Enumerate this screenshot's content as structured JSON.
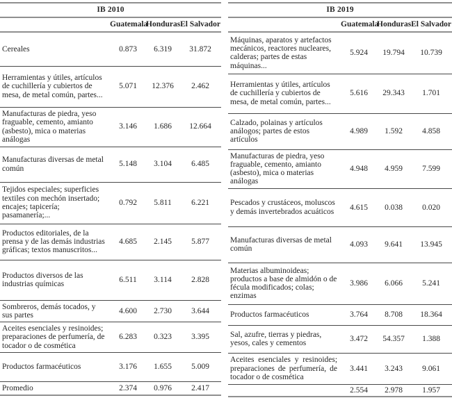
{
  "page": {
    "background": "#ffffff",
    "text_color": "#262626",
    "rule_color_heavy": "#8f8f8f",
    "rule_color_light": "#474747"
  },
  "tables": {
    "ib2010": {
      "title": "IB 2010",
      "columns": [
        "Guatemala",
        "Honduras",
        "El Salvador"
      ],
      "rows": [
        {
          "label": "Cereales",
          "values": [
            "0.873",
            "6.319",
            "31.872"
          ]
        },
        {
          "label": "Herramientas y útiles, artículos de cuchillería y cubiertos de mesa, de metal común, partes...",
          "values": [
            "5.071",
            "12.376",
            "2.462"
          ]
        },
        {
          "label": "Manufacturas de piedra, yeso fraguable, cemento, amianto (asbesto), mica o materias análogas",
          "values": [
            "3.146",
            "1.686",
            "12.664"
          ]
        },
        {
          "label": "Manufacturas diversas de metal común",
          "values": [
            "5.148",
            "3.104",
            "6.485"
          ]
        },
        {
          "label": "Tejidos especiales; superficies textiles con mechón insertado; encajes; tapicería; pasamanería;...",
          "values": [
            "0.792",
            "5.811",
            "6.221"
          ]
        },
        {
          "label": "Productos editoriales, de la prensa y de las demás industrias gráficas; textos manuscritos...",
          "values": [
            "4.685",
            "2.145",
            "5.877"
          ]
        },
        {
          "label": "Productos diversos de las industrias químicas",
          "values": [
            "6.511",
            "3.114",
            "2.828"
          ]
        },
        {
          "label": "Sombreros, demás tocados, y sus partes",
          "values": [
            "4.600",
            "2.730",
            "3.644"
          ]
        },
        {
          "label": "Aceites esenciales y resinoides; preparaciones de perfumería, de tocador o de cosmética",
          "values": [
            "6.283",
            "0.323",
            "3.395"
          ]
        },
        {
          "label": "Productos farmacéuticos",
          "values": [
            "3.176",
            "1.655",
            "5.009"
          ]
        },
        {
          "label": "Promedio",
          "values": [
            "2.374",
            "0.976",
            "2.417"
          ]
        }
      ]
    },
    "ib2019": {
      "title": "IB 2019",
      "columns": [
        "Guatemala",
        "Honduras",
        "El Salvador"
      ],
      "rows": [
        {
          "label": "Máquinas, aparatos y artefactos mecánicos, reactores nucleares, calderas; partes de estas máquinas...",
          "values": [
            "5.924",
            "19.794",
            "10.739"
          ]
        },
        {
          "label": "Herramientas y útiles, artículos de cuchillería y cubiertos de mesa, de metal común, partes...",
          "values": [
            "5.616",
            "29.343",
            "1.701"
          ]
        },
        {
          "label": "Calzado, polainas y artículos análogos; partes de estos artículos",
          "values": [
            "4.989",
            "1.592",
            "4.858"
          ]
        },
        {
          "label": "Manufacturas de piedra, yeso fraguable, cemento, amianto (asbesto), mica o materias análogas",
          "values": [
            "4.948",
            "4.959",
            "7.599"
          ]
        },
        {
          "label": "Pescados y crustáceos, moluscos y demás invertebrados acuáticos",
          "values": [
            "4.615",
            "0.038",
            "0.020"
          ]
        },
        {
          "label": "Manufacturas diversas de metal común",
          "values": [
            "4.093",
            "9.641",
            "13.945"
          ]
        },
        {
          "label": "Materias albuminoideas; productos a base de almidón o de fécula modificados; colas; enzimas",
          "values": [
            "3.986",
            "6.066",
            "5.241"
          ]
        },
        {
          "label": "Productos farmacéuticos",
          "values": [
            "3.764",
            "8.708",
            "18.364"
          ]
        },
        {
          "label": "Sal, azufre, tierras y piedras, yesos, cales y cementos",
          "values": [
            "3.472",
            "54.357",
            "1.388"
          ]
        },
        {
          "label": "Aceites esenciales y resinoides; preparaciones de perfumería, de tocador o de cosmética",
          "values": [
            "3.441",
            "3.243",
            "9.061"
          ]
        },
        {
          "label": "",
          "values": [
            "2.554",
            "2.978",
            "1.957"
          ]
        }
      ]
    }
  }
}
